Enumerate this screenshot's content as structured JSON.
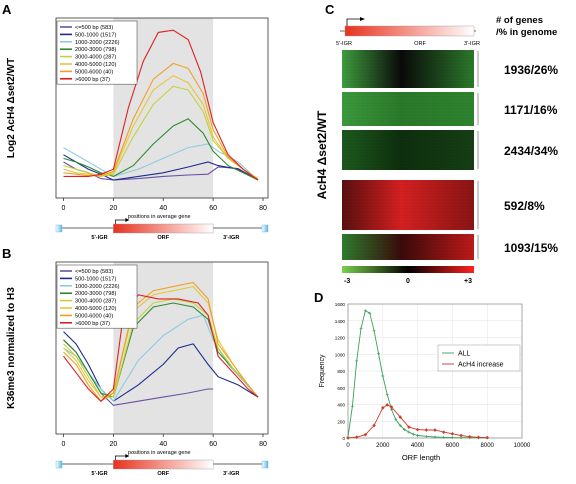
{
  "panels": {
    "A": "A",
    "B": "B",
    "C": "C",
    "D": "D"
  },
  "legend_items": [
    {
      "label": "<=500 bp (583)",
      "color": "#6a4fa8"
    },
    {
      "label": "500-1000 (1517)",
      "color": "#1d2c8c"
    },
    {
      "label": "1000-2000 (2226)",
      "color": "#8ecbe0"
    },
    {
      "label": "2000-3000 (798)",
      "color": "#2e8b2e"
    },
    {
      "label": "3000-4000 (287)",
      "color": "#c4d23a"
    },
    {
      "label": "4000-5000 (120)",
      "color": "#e8c53a"
    },
    {
      "label": "5000-6000 (40)",
      "color": "#f0a020"
    },
    {
      "label": ">6000 bp (37)",
      "color": "#e02020"
    }
  ],
  "gene_diagram": {
    "left_igr": "5'-IGR",
    "orf": "ORF",
    "right_igr": "3'-IGR"
  },
  "x_ticks": [
    "0",
    "20",
    "40",
    "60",
    "80"
  ],
  "x_caption": "positions in average gene",
  "panel_a": {
    "ylabel": "Log2 AcH4 Δset2/WT",
    "xlim": [
      -3,
      82
    ],
    "shade_range": [
      20,
      60
    ],
    "series": [
      {
        "color": "#6a4fa8",
        "x": [
          0,
          5,
          10,
          15,
          20,
          30,
          40,
          50,
          58,
          62,
          70,
          78
        ],
        "y": [
          0.55,
          0.45,
          0.4,
          0.32,
          0.3,
          0.32,
          0.35,
          0.37,
          0.38,
          0.48,
          0.46,
          0.3
        ]
      },
      {
        "color": "#1d2c8c",
        "x": [
          0,
          5,
          10,
          15,
          20,
          30,
          40,
          50,
          58,
          62,
          70,
          78
        ],
        "y": [
          0.65,
          0.55,
          0.45,
          0.38,
          0.3,
          0.35,
          0.4,
          0.48,
          0.55,
          0.5,
          0.45,
          0.3
        ]
      },
      {
        "color": "#8ecbe0",
        "x": [
          0,
          5,
          10,
          15,
          20,
          30,
          40,
          50,
          58,
          62,
          70,
          78
        ],
        "y": [
          0.75,
          0.65,
          0.55,
          0.45,
          0.35,
          0.45,
          0.6,
          0.75,
          0.8,
          0.7,
          0.55,
          0.3
        ]
      },
      {
        "color": "#2e8b2e",
        "x": [
          0,
          5,
          10,
          15,
          20,
          28,
          36,
          44,
          50,
          56,
          60,
          66,
          72,
          78
        ],
        "y": [
          0.6,
          0.55,
          0.48,
          0.4,
          0.35,
          0.5,
          0.8,
          1.05,
          1.15,
          0.95,
          0.7,
          0.5,
          0.4,
          0.3
        ]
      },
      {
        "color": "#c4d23a",
        "x": [
          0,
          5,
          10,
          15,
          20,
          28,
          36,
          44,
          50,
          56,
          60,
          66,
          72,
          78
        ],
        "y": [
          0.5,
          0.45,
          0.4,
          0.35,
          0.38,
          0.9,
          1.35,
          1.6,
          1.55,
          1.25,
          0.85,
          0.6,
          0.45,
          0.32
        ]
      },
      {
        "color": "#e8c53a",
        "x": [
          0,
          5,
          10,
          15,
          20,
          28,
          36,
          44,
          50,
          56,
          60,
          66,
          72,
          78
        ],
        "y": [
          0.45,
          0.4,
          0.38,
          0.35,
          0.4,
          1.05,
          1.55,
          1.75,
          1.65,
          1.35,
          0.9,
          0.6,
          0.45,
          0.32
        ]
      },
      {
        "color": "#f0a020",
        "x": [
          0,
          5,
          10,
          15,
          20,
          28,
          36,
          44,
          50,
          56,
          60,
          66,
          72,
          78
        ],
        "y": [
          0.4,
          0.38,
          0.36,
          0.36,
          0.42,
          1.15,
          1.7,
          1.92,
          1.85,
          1.5,
          1.0,
          0.62,
          0.45,
          0.3
        ]
      },
      {
        "color": "#e02020",
        "x": [
          0,
          5,
          10,
          15,
          20,
          26,
          32,
          38,
          44,
          50,
          55,
          60,
          66,
          72,
          78
        ],
        "y": [
          0.35,
          0.35,
          0.35,
          0.38,
          0.45,
          1.3,
          1.95,
          2.35,
          2.38,
          2.25,
          1.8,
          1.1,
          0.65,
          0.45,
          0.3
        ]
      }
    ]
  },
  "panel_b": {
    "ylabel": "K36me3 normalized to H3",
    "xlim": [
      -3,
      82
    ],
    "shade_range": [
      20,
      60
    ],
    "series": [
      {
        "color": "#6a4fa8",
        "x": [
          0,
          5,
          10,
          15,
          20,
          30,
          40,
          50,
          58,
          60
        ],
        "y": [
          1.6,
          1.45,
          1.2,
          0.95,
          0.8,
          0.85,
          0.9,
          0.95,
          1.0,
          1.0
        ]
      },
      {
        "color": "#1d2c8c",
        "x": [
          0,
          5,
          10,
          15,
          20,
          30,
          40,
          46,
          52,
          58,
          62,
          70,
          78
        ],
        "y": [
          1.7,
          1.55,
          1.3,
          1.0,
          0.85,
          1.05,
          1.3,
          1.5,
          1.55,
          1.3,
          1.15,
          1.05,
          0.9
        ]
      },
      {
        "color": "#8ecbe0",
        "x": [
          0,
          5,
          10,
          15,
          20,
          30,
          40,
          50,
          56,
          60,
          66,
          72,
          78
        ],
        "y": [
          1.5,
          1.4,
          1.2,
          1.0,
          0.85,
          1.35,
          1.65,
          1.85,
          1.9,
          1.6,
          1.3,
          1.1,
          0.9
        ]
      },
      {
        "color": "#2e8b2e",
        "x": [
          0,
          5,
          10,
          15,
          20,
          28,
          36,
          44,
          52,
          58,
          62,
          68,
          74,
          78
        ],
        "y": [
          1.6,
          1.45,
          1.2,
          0.95,
          0.9,
          1.75,
          2.0,
          2.05,
          2.0,
          1.85,
          1.45,
          1.25,
          1.05,
          0.9
        ]
      },
      {
        "color": "#c4d23a",
        "x": [
          0,
          5,
          10,
          15,
          20,
          28,
          36,
          44,
          52,
          58,
          62,
          68,
          74,
          78
        ],
        "y": [
          1.55,
          1.4,
          1.15,
          0.9,
          0.9,
          1.8,
          2.05,
          2.1,
          2.05,
          1.9,
          1.5,
          1.25,
          1.05,
          0.9
        ]
      },
      {
        "color": "#e8c53a",
        "x": [
          0,
          5,
          10,
          15,
          20,
          28,
          36,
          44,
          52,
          58,
          62,
          68,
          74,
          78
        ],
        "y": [
          1.5,
          1.35,
          1.1,
          0.9,
          0.95,
          1.95,
          2.15,
          2.2,
          2.25,
          2.05,
          1.6,
          1.3,
          1.05,
          0.9
        ]
      },
      {
        "color": "#f0a020",
        "x": [
          0,
          5,
          10,
          15,
          20,
          28,
          36,
          44,
          52,
          58,
          62,
          68,
          74,
          78
        ],
        "y": [
          1.45,
          1.3,
          1.05,
          0.85,
          0.95,
          2.0,
          2.2,
          2.25,
          2.3,
          2.1,
          1.55,
          1.3,
          1.05,
          0.9
        ]
      },
      {
        "color": "#e02020",
        "x": [
          0,
          5,
          10,
          15,
          20,
          24,
          30,
          38,
          46,
          54,
          58,
          62,
          68,
          74,
          78
        ],
        "y": [
          1.4,
          1.2,
          1.0,
          0.85,
          1.0,
          1.9,
          2.15,
          2.1,
          2.1,
          2.05,
          1.9,
          1.4,
          1.2,
          1.0,
          0.9
        ]
      }
    ]
  },
  "panel_c": {
    "ylabel": "AcH4 Δset2/WT",
    "header": "# of genes\n/% in genome",
    "header_line1": "# of genes",
    "header_line2": "/% in genome",
    "clusters": [
      {
        "label": "1936/26%",
        "pattern": "green-dark-green",
        "color_left": "#3f9e3f",
        "color_mid": "#0a0a0a",
        "color_right": "#2c7a2c"
      },
      {
        "label": "1171/16%",
        "pattern": "green",
        "color_left": "#3d9a3d",
        "color_mid": "#2a7a2a",
        "color_right": "#2e842e"
      },
      {
        "label": "2434/34%",
        "pattern": "dark-green",
        "color_left": "#1e5a1e",
        "color_mid": "#0d2f0d",
        "color_right": "#163f16"
      },
      {
        "label": "592/8%",
        "pattern": "red",
        "color_left": "#5a1010",
        "color_mid": "#d62020",
        "color_right": "#8a1515"
      },
      {
        "label": "1093/15%",
        "pattern": "green-red",
        "color_left": "#2e7d2e",
        "color_mid": "#3a0a0a",
        "color_right": "#c01a1a"
      }
    ],
    "colorbar": {
      "min": "-3",
      "mid": "0",
      "max": "+3"
    }
  },
  "chart_data": [
    {
      "type": "line",
      "title": "",
      "xlabel": "positions in average gene",
      "ylabel": "Log2 AcH4 Δset2/WT",
      "x": [
        0,
        20,
        40,
        60,
        80
      ]
    },
    {
      "type": "line",
      "title": "",
      "xlabel": "positions in average gene",
      "ylabel": "K36me3 normalized to H3",
      "x": [
        0,
        20,
        40,
        60,
        80
      ]
    },
    {
      "type": "line",
      "title": "",
      "xlabel": "ORF length",
      "ylabel": "Frequency",
      "xlim": [
        0,
        10000
      ],
      "ylim": [
        0,
        1600
      ],
      "x_ticks": [
        "0",
        "2000",
        "4000",
        "6000",
        "8000",
        "10000"
      ],
      "y_ticks": [
        "0",
        "200",
        "400",
        "600",
        "800",
        "1000",
        "1200",
        "1400",
        "1600"
      ],
      "series": [
        {
          "name": "ALL",
          "color": "#3aa05a",
          "marker": "cross",
          "x": [
            0,
            250,
            500,
            750,
            1000,
            1250,
            1500,
            1750,
            2000,
            2250,
            2500,
            2750,
            3000,
            3250,
            3500,
            3750,
            4000,
            4500,
            5000,
            5500,
            6000,
            6500,
            7000,
            7500,
            8000
          ],
          "y": [
            10,
            380,
            920,
            1310,
            1520,
            1490,
            1280,
            1010,
            740,
            520,
            340,
            220,
            150,
            100,
            70,
            45,
            30,
            20,
            12,
            8,
            5,
            4,
            3,
            2,
            1
          ]
        },
        {
          "name": "AcH4 increase",
          "color": "#d23a2a",
          "marker": "diamond",
          "x": [
            0,
            500,
            1000,
            1500,
            2000,
            2250,
            2500,
            3000,
            3500,
            4000,
            4500,
            5000,
            5500,
            6000,
            6500,
            7000,
            7500,
            8000
          ],
          "y": [
            0,
            10,
            40,
            150,
            360,
            395,
            370,
            250,
            130,
            100,
            95,
            95,
            70,
            50,
            30,
            15,
            8,
            5
          ]
        }
      ],
      "legend": "top-right"
    }
  ]
}
